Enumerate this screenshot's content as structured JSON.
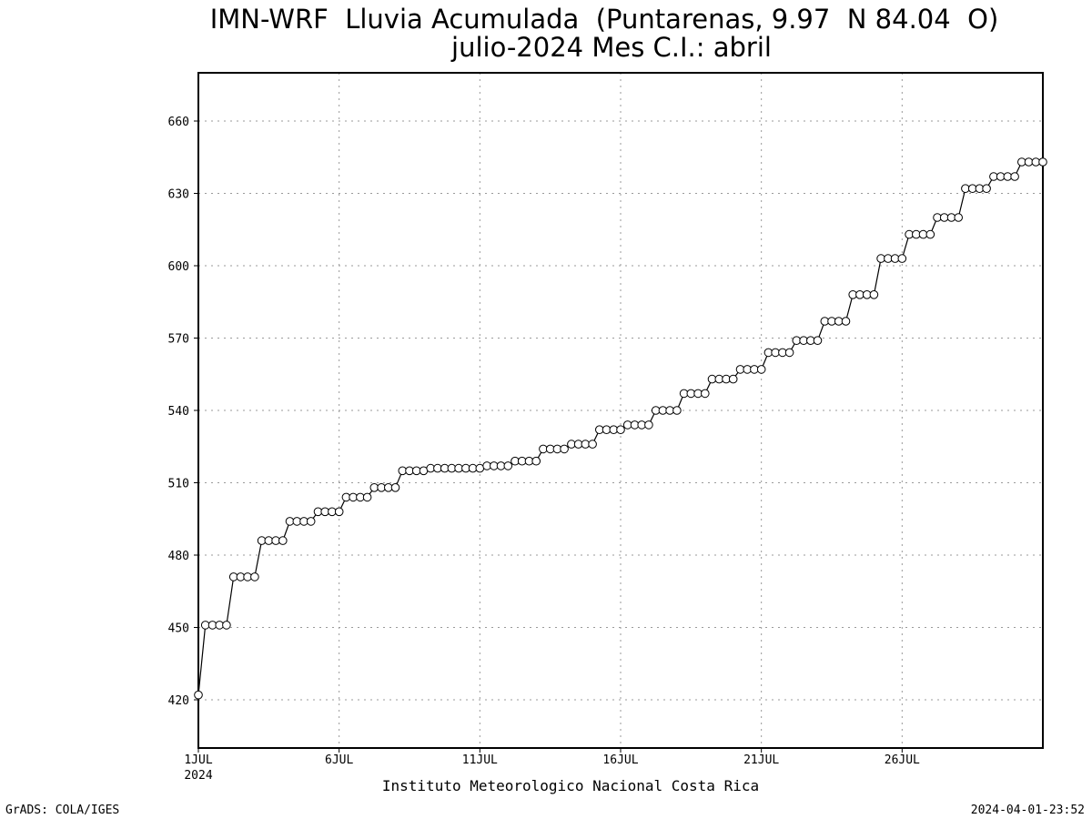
{
  "chart_data": {
    "type": "line",
    "title": "IMN-WRF  Lluvia Acumulada  (Puntarenas, 9.97  N 84.04  O)",
    "subtitle": "julio-2024 Mes C.I.: abril",
    "xlabel": "",
    "ylabel": "",
    "xlim": [
      "2024-07-01T00:00",
      "2024-07-31T00:00"
    ],
    "ylim": [
      400,
      680
    ],
    "grid": true,
    "x_ticks": [
      {
        "label": "1JUL",
        "year": "2024"
      },
      {
        "label": "6JUL"
      },
      {
        "label": "11JUL"
      },
      {
        "label": "16JUL"
      },
      {
        "label": "21JUL"
      },
      {
        "label": "26JUL"
      }
    ],
    "y_ticks": [
      "420",
      "450",
      "480",
      "510",
      "540",
      "570",
      "600",
      "630",
      "660"
    ],
    "series": [
      {
        "x": [
          "2024-07-01T00:00",
          "2024-07-01T06:00",
          "2024-07-01T12:00",
          "2024-07-01T18:00",
          "2024-07-02T00:00",
          "2024-07-02T06:00",
          "2024-07-02T12:00",
          "2024-07-02T18:00",
          "2024-07-03T00:00",
          "2024-07-03T06:00",
          "2024-07-03T12:00",
          "2024-07-03T18:00",
          "2024-07-04T00:00",
          "2024-07-04T06:00",
          "2024-07-04T12:00",
          "2024-07-04T18:00",
          "2024-07-05T00:00",
          "2024-07-05T06:00",
          "2024-07-05T12:00",
          "2024-07-05T18:00",
          "2024-07-06T00:00",
          "2024-07-06T06:00",
          "2024-07-06T12:00",
          "2024-07-06T18:00",
          "2024-07-07T00:00",
          "2024-07-07T06:00",
          "2024-07-07T12:00",
          "2024-07-07T18:00",
          "2024-07-08T00:00",
          "2024-07-08T06:00",
          "2024-07-08T12:00",
          "2024-07-08T18:00",
          "2024-07-09T00:00",
          "2024-07-09T06:00",
          "2024-07-09T12:00",
          "2024-07-09T18:00",
          "2024-07-10T00:00",
          "2024-07-10T06:00",
          "2024-07-10T12:00",
          "2024-07-10T18:00",
          "2024-07-11T00:00",
          "2024-07-11T06:00",
          "2024-07-11T12:00",
          "2024-07-11T18:00",
          "2024-07-12T00:00",
          "2024-07-12T06:00",
          "2024-07-12T12:00",
          "2024-07-12T18:00",
          "2024-07-13T00:00",
          "2024-07-13T06:00",
          "2024-07-13T12:00",
          "2024-07-13T18:00",
          "2024-07-14T00:00",
          "2024-07-14T06:00",
          "2024-07-14T12:00",
          "2024-07-14T18:00",
          "2024-07-15T00:00",
          "2024-07-15T06:00",
          "2024-07-15T12:00",
          "2024-07-15T18:00",
          "2024-07-16T00:00",
          "2024-07-16T06:00",
          "2024-07-16T12:00",
          "2024-07-16T18:00",
          "2024-07-17T00:00",
          "2024-07-17T06:00",
          "2024-07-17T12:00",
          "2024-07-17T18:00",
          "2024-07-18T00:00",
          "2024-07-18T06:00",
          "2024-07-18T12:00",
          "2024-07-18T18:00",
          "2024-07-19T00:00",
          "2024-07-19T06:00",
          "2024-07-19T12:00",
          "2024-07-19T18:00",
          "2024-07-20T00:00",
          "2024-07-20T06:00",
          "2024-07-20T12:00",
          "2024-07-20T18:00",
          "2024-07-21T00:00",
          "2024-07-21T06:00",
          "2024-07-21T12:00",
          "2024-07-21T18:00",
          "2024-07-22T00:00",
          "2024-07-22T06:00",
          "2024-07-22T12:00",
          "2024-07-22T18:00",
          "2024-07-23T00:00",
          "2024-07-23T06:00",
          "2024-07-23T12:00",
          "2024-07-23T18:00",
          "2024-07-24T00:00",
          "2024-07-24T06:00",
          "2024-07-24T12:00",
          "2024-07-24T18:00",
          "2024-07-25T00:00",
          "2024-07-25T06:00",
          "2024-07-25T12:00",
          "2024-07-25T18:00",
          "2024-07-26T00:00",
          "2024-07-26T06:00",
          "2024-07-26T12:00",
          "2024-07-26T18:00",
          "2024-07-27T00:00",
          "2024-07-27T06:00",
          "2024-07-27T12:00",
          "2024-07-27T18:00",
          "2024-07-28T00:00",
          "2024-07-28T06:00",
          "2024-07-28T12:00",
          "2024-07-28T18:00",
          "2024-07-29T00:00",
          "2024-07-29T06:00",
          "2024-07-29T12:00",
          "2024-07-29T18:00",
          "2024-07-30T00:00",
          "2024-07-30T06:00",
          "2024-07-30T12:00",
          "2024-07-30T18:00",
          "2024-07-31T00:00"
        ],
        "y": [
          422,
          451,
          451,
          451,
          451,
          471,
          471,
          471,
          471,
          486,
          486,
          486,
          486,
          494,
          494,
          494,
          494,
          498,
          498,
          498,
          498,
          504,
          504,
          504,
          504,
          508,
          508,
          508,
          508,
          515,
          515,
          515,
          515,
          516,
          516,
          516,
          516,
          516,
          516,
          516,
          516,
          517,
          517,
          517,
          517,
          519,
          519,
          519,
          519,
          524,
          524,
          524,
          524,
          526,
          526,
          526,
          526,
          532,
          532,
          532,
          532,
          534,
          534,
          534,
          534,
          540,
          540,
          540,
          540,
          547,
          547,
          547,
          547,
          553,
          553,
          553,
          553,
          557,
          557,
          557,
          557,
          564,
          564,
          564,
          564,
          569,
          569,
          569,
          569,
          577,
          577,
          577,
          577,
          588,
          588,
          588,
          588,
          603,
          603,
          603,
          603,
          613,
          613,
          613,
          613,
          620,
          620,
          620,
          620,
          632,
          632,
          632,
          632,
          637,
          637,
          637,
          637,
          643,
          643,
          643,
          643
        ]
      }
    ]
  },
  "footer": {
    "institution": "Instituto Meteorologico Nacional Costa Rica",
    "left": "GrADS: COLA/IGES",
    "right": "2024-04-01-23:52"
  }
}
